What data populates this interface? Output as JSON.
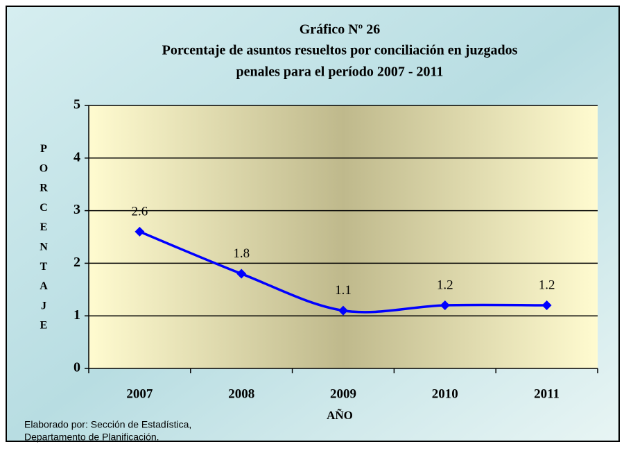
{
  "chart_data": {
    "type": "line",
    "title": [
      "Gráfico Nº 26",
      "Porcentaje de asuntos resueltos por conciliación  en juzgados",
      "penales para el período  2007 - 2011"
    ],
    "y_label": "PORCENTAJE",
    "x_label": "AÑO",
    "categories": [
      "2007",
      "2008",
      "2009",
      "2010",
      "2011"
    ],
    "series": [
      {
        "name": "Porcentaje",
        "color": "#0000ff",
        "values": [
          2.6,
          1.8,
          1.1,
          1.2,
          1.2
        ]
      }
    ],
    "ylim": [
      0,
      5
    ],
    "yticks": [
      0,
      1,
      2,
      3,
      4,
      5
    ],
    "grid": true,
    "footnote": [
      "Elaborado por: Sección de Estadística,",
      "Departamento de Planificación."
    ]
  }
}
